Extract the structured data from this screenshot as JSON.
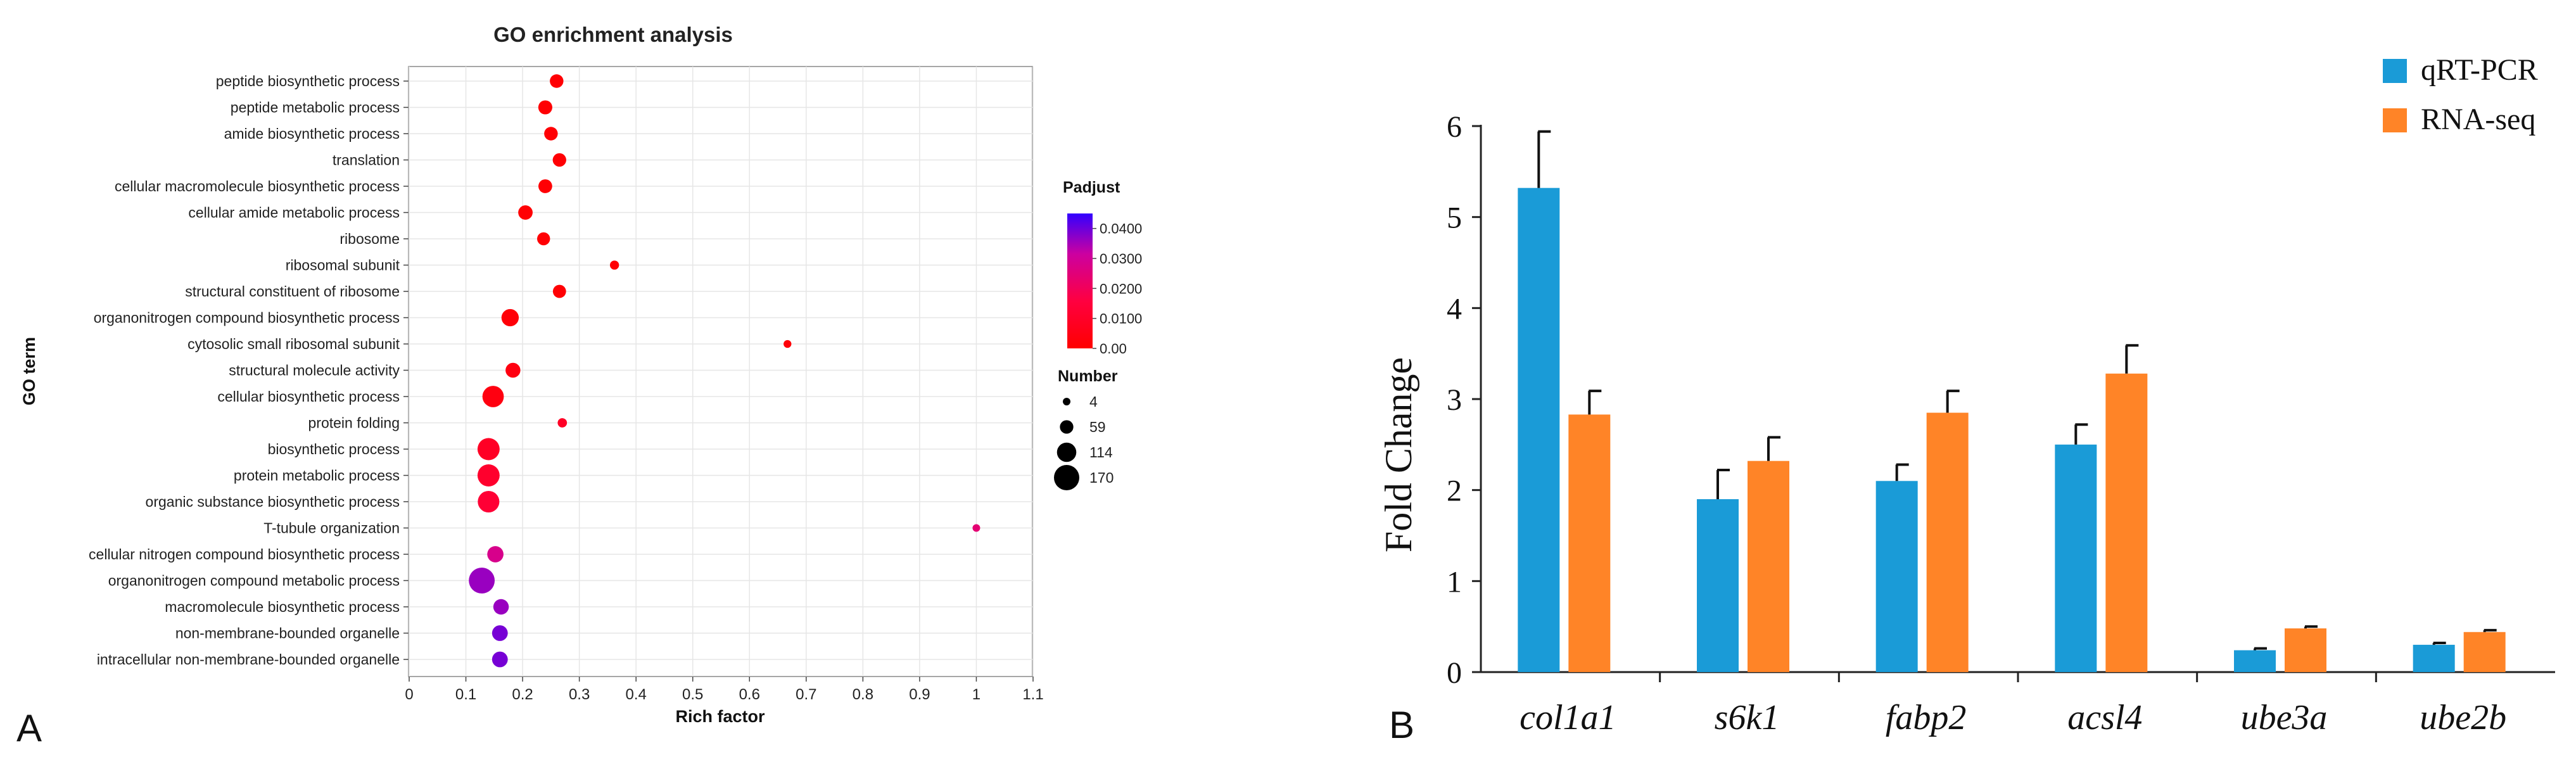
{
  "panel_labels": {
    "a": "A",
    "b": "B"
  },
  "chart_data": [
    {
      "type": "scatter",
      "title": "GO enrichment analysis",
      "xlabel": "Rich factor",
      "ylabel": "GO term",
      "xlim": [
        0,
        1.1
      ],
      "xticks": [
        "0",
        "0.1",
        "0.2",
        "0.3",
        "0.4",
        "0.5",
        "0.6",
        "0.7",
        "0.8",
        "0.9",
        "1",
        "1.1"
      ],
      "grid": true,
      "color_legend": {
        "title": "Padjust",
        "ticks": [
          "0.0400",
          "0.0300",
          "0.0200",
          "0.0100",
          "0.00"
        ],
        "range": [
          0,
          0.045
        ],
        "low_color": "#ff0000",
        "high_color": "#3300ff"
      },
      "size_legend": {
        "title": "Number",
        "values": [
          4,
          59,
          114,
          170
        ],
        "labels": [
          "4",
          "59",
          "114",
          "170"
        ]
      },
      "terms": [
        {
          "label": "peptide biosynthetic process",
          "rich_factor": 0.26,
          "padjust": 0.001,
          "number": 60
        },
        {
          "label": "peptide metabolic process",
          "rich_factor": 0.24,
          "padjust": 0.001,
          "number": 64
        },
        {
          "label": "amide biosynthetic process",
          "rich_factor": 0.25,
          "padjust": 0.001,
          "number": 60
        },
        {
          "label": "translation",
          "rich_factor": 0.265,
          "padjust": 0.001,
          "number": 59
        },
        {
          "label": "cellular macromolecule biosynthetic process",
          "rich_factor": 0.24,
          "padjust": 0.001,
          "number": 62
        },
        {
          "label": "cellular amide metabolic process",
          "rich_factor": 0.205,
          "padjust": 0.001,
          "number": 68
        },
        {
          "label": "ribosome",
          "rich_factor": 0.237,
          "padjust": 0.001,
          "number": 54
        },
        {
          "label": "ribosomal subunit",
          "rich_factor": 0.362,
          "padjust": 0.001,
          "number": 18
        },
        {
          "label": "structural constituent of ribosome",
          "rich_factor": 0.265,
          "padjust": 0.001,
          "number": 56
        },
        {
          "label": "organonitrogen compound biosynthetic process",
          "rich_factor": 0.178,
          "padjust": 0.002,
          "number": 95
        },
        {
          "label": "cytosolic small ribosomal subunit",
          "rich_factor": 0.667,
          "padjust": 0.002,
          "number": 6
        },
        {
          "label": "structural molecule activity",
          "rich_factor": 0.183,
          "padjust": 0.004,
          "number": 72
        },
        {
          "label": "cellular biosynthetic process",
          "rich_factor": 0.148,
          "padjust": 0.004,
          "number": 133
        },
        {
          "label": "protein folding",
          "rich_factor": 0.27,
          "padjust": 0.009,
          "number": 20
        },
        {
          "label": "biosynthetic process",
          "rich_factor": 0.14,
          "padjust": 0.009,
          "number": 140
        },
        {
          "label": "protein metabolic process",
          "rich_factor": 0.14,
          "padjust": 0.011,
          "number": 140
        },
        {
          "label": "organic substance biosynthetic process",
          "rich_factor": 0.14,
          "padjust": 0.013,
          "number": 135
        },
        {
          "label": "T-tubule organization",
          "rich_factor": 1.0,
          "padjust": 0.024,
          "number": 4
        },
        {
          "label": "cellular nitrogen compound biosynthetic process",
          "rich_factor": 0.152,
          "padjust": 0.028,
          "number": 85
        },
        {
          "label": "organonitrogen compound metabolic process",
          "rich_factor": 0.128,
          "padjust": 0.036,
          "number": 175
        },
        {
          "label": "macromolecule biosynthetic process",
          "rich_factor": 0.162,
          "padjust": 0.036,
          "number": 78
        },
        {
          "label": "non-membrane-bounded organelle",
          "rich_factor": 0.16,
          "padjust": 0.039,
          "number": 80
        },
        {
          "label": "intracellular non-membrane-bounded organelle",
          "rich_factor": 0.16,
          "padjust": 0.039,
          "number": 80
        }
      ]
    },
    {
      "type": "bar",
      "title": "",
      "xlabel": "",
      "ylabel": "Fold Change",
      "ylim": [
        0,
        6
      ],
      "yticks": [
        "0",
        "1",
        "2",
        "3",
        "4",
        "5",
        "6"
      ],
      "grid": false,
      "legend_position": "top-right",
      "categories": [
        "col1a1",
        "s6k1",
        "fabp2",
        "acsl4",
        "ube3a",
        "ube2b"
      ],
      "series": [
        {
          "name": "qRT-PCR",
          "color": "#1a9bd7",
          "values": [
            5.32,
            1.9,
            2.1,
            2.5,
            0.24,
            0.3
          ],
          "errors": [
            0.62,
            0.32,
            0.18,
            0.22,
            0.02,
            0.02
          ]
        },
        {
          "name": "RNA-seq",
          "color": "#ff8427",
          "values": [
            2.83,
            2.32,
            2.85,
            3.28,
            0.48,
            0.44
          ],
          "errors": [
            0.26,
            0.26,
            0.24,
            0.31,
            0.02,
            0.02
          ]
        }
      ]
    }
  ]
}
